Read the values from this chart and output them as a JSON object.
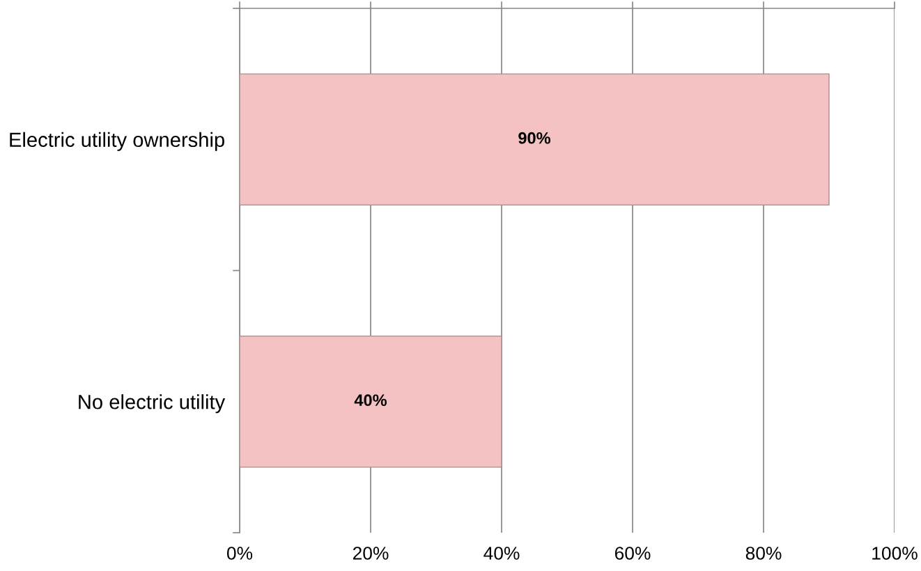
{
  "chart_data": {
    "type": "bar",
    "orientation": "horizontal",
    "categories": [
      "Electric utility ownership",
      "No electric utility"
    ],
    "values": [
      90,
      40
    ],
    "color": "#f4c2c2",
    "value_labels": [
      "90%",
      "40%"
    ],
    "xlim": [
      0,
      100
    ],
    "xticks": [
      {
        "value": 0,
        "label": "0%"
      },
      {
        "value": 20,
        "label": "20%"
      },
      {
        "value": 40,
        "label": "40%"
      },
      {
        "value": 60,
        "label": "60%"
      },
      {
        "value": 80,
        "label": "80%"
      },
      {
        "value": 100,
        "label": "100%"
      }
    ],
    "grid": "x",
    "legend": false
  }
}
